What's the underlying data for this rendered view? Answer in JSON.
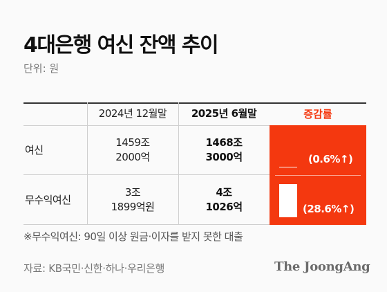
{
  "title": "4대은행 여신 잔액 추이",
  "unit": "단위: 원",
  "table": {
    "headers": [
      "2024년 12월말",
      "2025년 6월말",
      "증감률"
    ],
    "rows": [
      {
        "label": "여신",
        "dec2024": [
          "1459조",
          "2000억"
        ],
        "jun2025": [
          "1468조",
          "3000억"
        ],
        "change_pct": 0.6,
        "change_label": "(0.6%↑)"
      },
      {
        "label": "무수익여신",
        "dec2024": [
          "3조",
          "1899억원"
        ],
        "jun2025": [
          "4조",
          "1026억"
        ],
        "change_pct": 28.6,
        "change_label": "(28.6%↑)"
      }
    ]
  },
  "footnote": "※무수익여신: 90일 이상 원금·이자를 받지 못한 대출",
  "source": "자료: KB국민·신한·하나·우리은행",
  "logo": "The JoongAng",
  "colors": {
    "accent": "#f4380f",
    "bar": "#ffffff",
    "rule": "#333333"
  }
}
